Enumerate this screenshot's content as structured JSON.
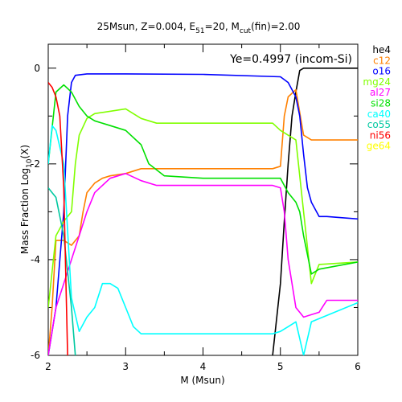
{
  "chart_data": {
    "type": "line",
    "title": "25Msun, Z=0.004, E51=20, Mcut(fin)=2.00",
    "title_parts": {
      "a": "25Msun, Z=0.004, E",
      "sub1": "51",
      "b": "=20, M",
      "sub2": "cut",
      "c": "(fin)=2.00"
    },
    "xlabel": "M (Msun)",
    "ylabel_parts": {
      "main": "Mass Fraction Log",
      "sub": "10",
      "end": "(X)"
    },
    "annotation": "Ye=0.4997 (incom-Si)",
    "xlim": [
      2,
      6
    ],
    "ylim": [
      -6,
      0.5
    ],
    "xticks": [
      2,
      3,
      4,
      5,
      6
    ],
    "yticks": [
      0,
      -2,
      -4,
      -6
    ],
    "legend_placement": "right",
    "series": [
      {
        "name": "he4",
        "color": "#000000",
        "x": [
          4.9,
          5.0,
          5.05,
          5.1,
          5.15,
          5.2,
          5.25,
          5.3,
          5.4,
          6.0
        ],
        "y": [
          -6.0,
          -4.5,
          -3.2,
          -2.0,
          -1.0,
          -0.5,
          -0.05,
          0.0,
          0.0,
          0.0
        ]
      },
      {
        "name": "c12",
        "color": "#ff8000",
        "x": [
          2.0,
          2.05,
          2.1,
          2.2,
          2.3,
          2.4,
          2.45,
          2.5,
          2.6,
          2.7,
          2.8,
          3.0,
          3.2,
          4.0,
          4.9,
          5.0,
          5.05,
          5.1,
          5.2,
          5.3,
          5.4,
          6.0
        ],
        "y": [
          -6.0,
          -5.0,
          -3.6,
          -3.6,
          -3.7,
          -3.5,
          -3.0,
          -2.6,
          -2.4,
          -2.3,
          -2.25,
          -2.2,
          -2.1,
          -2.1,
          -2.1,
          -2.05,
          -1.0,
          -0.6,
          -0.45,
          -1.4,
          -1.5,
          -1.5
        ]
      },
      {
        "name": "o16",
        "color": "#0000ff",
        "x": [
          2.0,
          2.1,
          2.2,
          2.25,
          2.3,
          2.35,
          2.5,
          3.0,
          4.0,
          5.0,
          5.1,
          5.2,
          5.25,
          5.3,
          5.35,
          5.4,
          5.5,
          5.6,
          6.0
        ],
        "y": [
          -6.0,
          -5.0,
          -3.0,
          -1.0,
          -0.3,
          -0.15,
          -0.12,
          -0.12,
          -0.13,
          -0.18,
          -0.3,
          -0.6,
          -1.0,
          -1.8,
          -2.5,
          -2.8,
          -3.1,
          -3.1,
          -3.15
        ]
      },
      {
        "name": "mg24",
        "color": "#80ff00",
        "x": [
          2.0,
          2.1,
          2.2,
          2.3,
          2.35,
          2.4,
          2.5,
          2.6,
          3.0,
          3.2,
          3.4,
          4.0,
          4.9,
          5.0,
          5.2,
          5.3,
          5.4,
          5.5,
          6.0
        ],
        "y": [
          -5.0,
          -3.5,
          -3.2,
          -3.0,
          -2.0,
          -1.4,
          -1.05,
          -0.95,
          -0.85,
          -1.05,
          -1.15,
          -1.15,
          -1.15,
          -1.3,
          -1.5,
          -3.0,
          -4.5,
          -4.1,
          -4.05
        ]
      },
      {
        "name": "al27",
        "color": "#ff00ff",
        "x": [
          2.0,
          2.1,
          2.2,
          2.3,
          2.4,
          2.5,
          2.6,
          2.8,
          3.0,
          3.2,
          3.4,
          4.0,
          4.9,
          5.0,
          5.05,
          5.1,
          5.2,
          5.3,
          5.5,
          5.6,
          6.0
        ],
        "y": [
          -6.0,
          -5.0,
          -4.5,
          -4.0,
          -3.5,
          -3.0,
          -2.6,
          -2.3,
          -2.2,
          -2.35,
          -2.45,
          -2.45,
          -2.45,
          -2.5,
          -3.0,
          -4.0,
          -5.0,
          -5.2,
          -5.1,
          -4.85,
          -4.85
        ]
      },
      {
        "name": "si28",
        "color": "#00e000",
        "x": [
          2.0,
          2.1,
          2.2,
          2.3,
          2.4,
          2.5,
          2.6,
          2.8,
          3.0,
          3.2,
          3.3,
          3.5,
          4.0,
          4.9,
          5.0,
          5.1,
          5.2,
          5.25,
          5.3,
          5.4,
          5.5,
          6.0
        ],
        "y": [
          -2.0,
          -0.5,
          -0.35,
          -0.5,
          -0.8,
          -1.0,
          -1.1,
          -1.2,
          -1.3,
          -1.6,
          -2.0,
          -2.25,
          -2.3,
          -2.3,
          -2.3,
          -2.6,
          -2.8,
          -3.0,
          -3.5,
          -4.3,
          -4.2,
          -4.05
        ]
      },
      {
        "name": "ca40",
        "color": "#00ffff",
        "x": [
          2.0,
          2.05,
          2.1,
          2.2,
          2.3,
          2.4,
          2.5,
          2.6,
          2.7,
          2.8,
          2.9,
          3.0,
          3.1,
          3.2,
          4.0,
          4.9,
          5.0,
          5.1,
          5.2,
          5.3,
          5.4,
          6.0
        ],
        "y": [
          -2.0,
          -1.2,
          -1.3,
          -2.0,
          -4.8,
          -5.5,
          -5.2,
          -5.0,
          -4.5,
          -4.5,
          -4.6,
          -5.0,
          -5.4,
          -5.55,
          -5.55,
          -5.55,
          -5.5,
          -5.4,
          -5.3,
          -6.0,
          -5.3,
          -4.9
        ]
      },
      {
        "name": "co55",
        "color": "#00c8a0",
        "x": [
          2.0,
          2.05,
          2.1,
          2.2,
          2.3,
          2.35
        ],
        "y": [
          -2.5,
          -2.6,
          -2.7,
          -3.5,
          -5.0,
          -6.0
        ]
      },
      {
        "name": "ni56",
        "color": "#ff0000",
        "x": [
          2.0,
          2.05,
          2.1,
          2.15,
          2.2,
          2.25
        ],
        "y": [
          -0.3,
          -0.4,
          -0.6,
          -1.0,
          -2.5,
          -6.0
        ]
      },
      {
        "name": "ge64",
        "color": "#ffff00",
        "x": [],
        "y": []
      }
    ]
  }
}
